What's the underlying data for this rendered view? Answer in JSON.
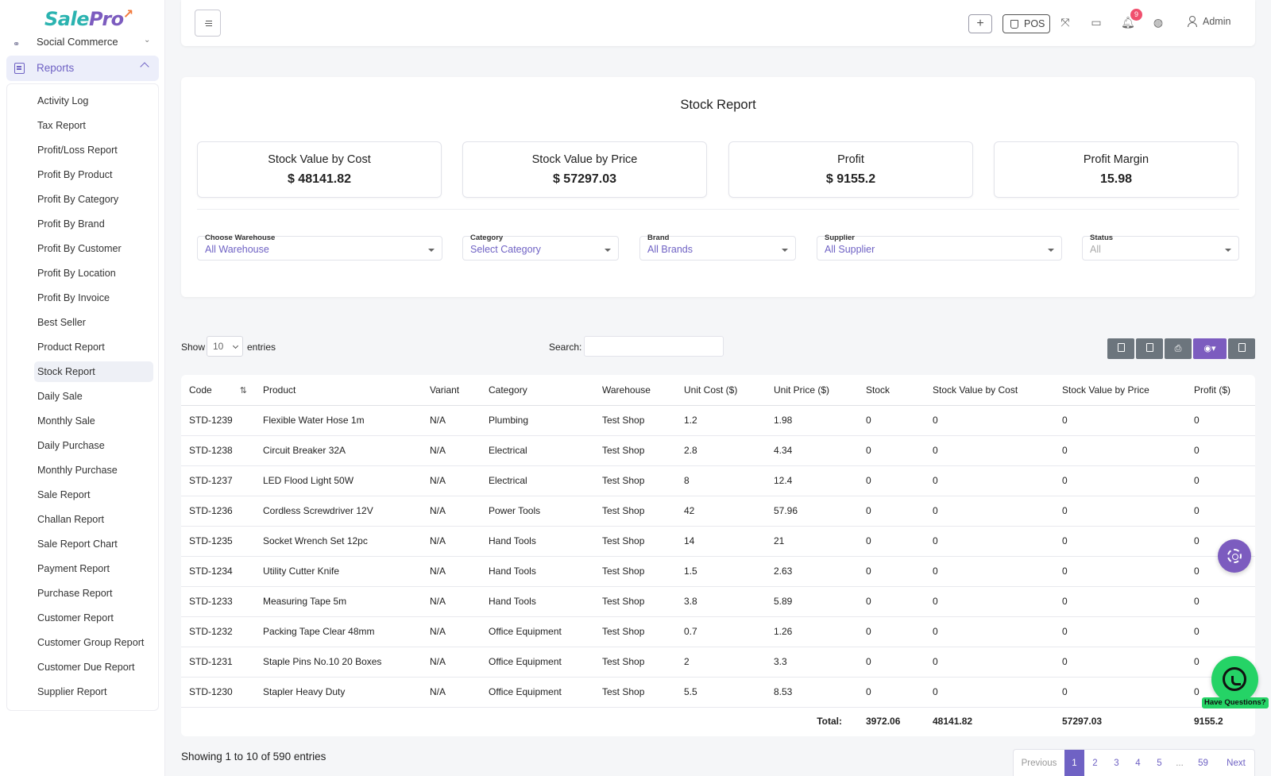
{
  "sidebar": {
    "logo": {
      "part1": "Sale",
      "part2": "Pro"
    },
    "social_commerce": "Social Commerce",
    "reports_label": "Reports",
    "items": [
      "Activity Log",
      "Tax Report",
      "Profit/Loss Report",
      "Profit By Product",
      "Profit By Category",
      "Profit By Brand",
      "Profit By Customer",
      "Profit By Location",
      "Profit By Invoice",
      "Best Seller",
      "Product Report",
      "Stock Report",
      "Daily Sale",
      "Monthly Sale",
      "Daily Purchase",
      "Monthly Purchase",
      "Sale Report",
      "Challan Report",
      "Sale Report Chart",
      "Payment Report",
      "Purchase Report",
      "Customer Report",
      "Customer Group Report",
      "Customer Due Report",
      "Supplier Report"
    ],
    "active_item": "Stock Report"
  },
  "topbar": {
    "plus": "+",
    "pos_label": "POS",
    "notification_count": "9",
    "user": "Admin"
  },
  "report": {
    "title": "Stock Report",
    "stats": [
      {
        "label": "Stock Value by Cost",
        "value": "$ 48141.82"
      },
      {
        "label": "Stock Value by Price",
        "value": "$ 57297.03"
      },
      {
        "label": "Profit",
        "value": "$ 9155.2"
      },
      {
        "label": "Profit Margin",
        "value": "15.98"
      }
    ],
    "filters": [
      {
        "label": "Choose Warehouse",
        "value": "All Warehouse"
      },
      {
        "label": "Category",
        "value": "Select Category"
      },
      {
        "label": "Brand",
        "value": "All Brands"
      },
      {
        "label": "Supplier",
        "value": "All Supplier"
      },
      {
        "label": "Status",
        "value": "All"
      }
    ]
  },
  "table_controls": {
    "show": "Show",
    "entries_value": "10",
    "entries": "entries",
    "search": "Search:"
  },
  "table": {
    "columns": [
      "Code",
      "Product",
      "Variant",
      "Category",
      "Warehouse",
      "Unit Cost ($)",
      "Unit Price ($)",
      "Stock",
      "Stock Value by Cost",
      "Stock Value by Price",
      "Profit ($)"
    ],
    "rows": [
      [
        "STD-1239",
        "Flexible Water Hose 1m",
        "N/A",
        "Plumbing",
        "Test Shop",
        "1.2",
        "1.98",
        "0",
        "0",
        "0",
        "0"
      ],
      [
        "STD-1238",
        "Circuit Breaker 32A",
        "N/A",
        "Electrical",
        "Test Shop",
        "2.8",
        "4.34",
        "0",
        "0",
        "0",
        "0"
      ],
      [
        "STD-1237",
        "LED Flood Light 50W",
        "N/A",
        "Electrical",
        "Test Shop",
        "8",
        "12.4",
        "0",
        "0",
        "0",
        "0"
      ],
      [
        "STD-1236",
        "Cordless Screwdriver 12V",
        "N/A",
        "Power Tools",
        "Test Shop",
        "42",
        "57.96",
        "0",
        "0",
        "0",
        "0"
      ],
      [
        "STD-1235",
        "Socket Wrench Set 12pc",
        "N/A",
        "Hand Tools",
        "Test Shop",
        "14",
        "21",
        "0",
        "0",
        "0",
        "0"
      ],
      [
        "STD-1234",
        "Utility Cutter Knife",
        "N/A",
        "Hand Tools",
        "Test Shop",
        "1.5",
        "2.63",
        "0",
        "0",
        "0",
        "0"
      ],
      [
        "STD-1233",
        "Measuring Tape 5m",
        "N/A",
        "Hand Tools",
        "Test Shop",
        "3.8",
        "5.89",
        "0",
        "0",
        "0",
        "0"
      ],
      [
        "STD-1232",
        "Packing Tape Clear 48mm",
        "N/A",
        "Office Equipment",
        "Test Shop",
        "0.7",
        "1.26",
        "0",
        "0",
        "0",
        "0"
      ],
      [
        "STD-1231",
        "Staple Pins No.10 20 Boxes",
        "N/A",
        "Office Equipment",
        "Test Shop",
        "2",
        "3.3",
        "0",
        "0",
        "0",
        "0"
      ],
      [
        "STD-1230",
        "Stapler Heavy Duty",
        "N/A",
        "Office Equipment",
        "Test Shop",
        "5.5",
        "8.53",
        "0",
        "0",
        "0",
        "0"
      ]
    ],
    "total": {
      "label": "Total:",
      "stock": "3972.06",
      "value_cost": "48141.82",
      "value_price": "57297.03",
      "profit": "9155.2"
    }
  },
  "footer": {
    "showing": "Showing 1 to 10 of 590 entries",
    "pages": [
      "Previous",
      "1",
      "2",
      "3",
      "4",
      "5",
      "...",
      "59",
      "Next"
    ]
  },
  "floating": {
    "whatsapp_label": "Have Questions?"
  },
  "colors": {
    "accent": "#7c5cbf",
    "accent_text": "#6f62c4",
    "whatsapp": "#25d366"
  }
}
